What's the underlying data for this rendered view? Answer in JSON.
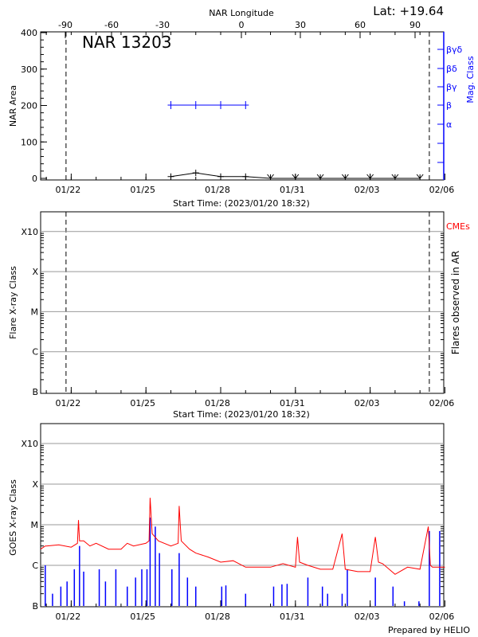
{
  "header": {
    "lat_label": "Lat: +19.64",
    "region_label": "NAR 13203"
  },
  "colors": {
    "area": "#000000",
    "mag_class": "#0000ff",
    "goes_flux": "#ff0000",
    "flares": "#0000ff",
    "cme": "#ff0000",
    "grid": "#999999"
  },
  "chart_data": [
    {
      "type": "line",
      "title": "NAR 13203",
      "xlabel": "Start Time: (2023/01/20 18:32)",
      "ylabel": "NAR Area",
      "y2label": "Mag. Class",
      "top_xlabel": "NAR Longitude",
      "xlim": [
        "2023-01-20 18:32",
        "2023-02-06 00:00"
      ],
      "ylim": [
        0,
        400
      ],
      "x_ticks": [
        "01/22",
        "01/25",
        "01/28",
        "01/31",
        "02/03",
        "02/06"
      ],
      "y_ticks": [
        "0",
        "100",
        "200",
        "300",
        "400"
      ],
      "top_ticks": [
        "-90",
        "-60",
        "-30",
        "0",
        "30",
        "60",
        "90"
      ],
      "y2_ticks": [
        "α",
        "β",
        "βγ",
        "βδ",
        "βγδ"
      ],
      "limb_lines": [
        "2023-01-21 19:00",
        "2023-02-05 09:00"
      ],
      "series": [
        {
          "name": "NAR Area",
          "x": [
            "2023-01-26",
            "2023-01-27",
            "2023-01-28",
            "2023-01-29",
            "2023-01-30",
            "2023-01-31",
            "2023-02-01",
            "2023-02-02",
            "2023-02-03",
            "2023-02-04",
            "2023-02-05"
          ],
          "values": [
            5,
            15,
            5,
            5,
            0,
            0,
            0,
            0,
            0,
            0,
            0
          ]
        },
        {
          "name": "Mag. Class",
          "x": [
            "2023-01-26",
            "2023-01-27",
            "2023-01-28",
            "2023-01-29"
          ],
          "values": [
            "β",
            "β",
            "β",
            "β"
          ]
        }
      ]
    },
    {
      "type": "scatter",
      "xlabel": "Start Time: (2023/01/20 18:32)",
      "ylabel": "Flare X-ray Class",
      "y2label": "Flares observed in AR",
      "legend": "CMEs",
      "xlim": [
        "2023-01-20 18:32",
        "2023-02-06 00:00"
      ],
      "x_ticks": [
        "01/22",
        "01/25",
        "01/28",
        "01/31",
        "02/03",
        "02/06"
      ],
      "y_ticks": [
        "B",
        "C",
        "M",
        "X",
        "X10"
      ],
      "grid": true,
      "limb_lines": [
        "2023-01-21 19:00",
        "2023-02-05 09:00"
      ],
      "series": []
    },
    {
      "type": "line",
      "ylabel": "GOES X-ray Class",
      "footer": "Prepared by HELIO",
      "xlim": [
        "2023-01-20 18:32",
        "2023-02-06 00:00"
      ],
      "x_ticks": [
        "01/22",
        "01/25",
        "01/28",
        "01/31",
        "02/03",
        "02/06"
      ],
      "y_ticks": [
        "B",
        "C",
        "M",
        "X",
        "X10"
      ],
      "ylim_flux": [
        1e-07,
        0.01
      ],
      "grid": true,
      "series": [
        {
          "name": "GOES flux",
          "x": [
            "2023-01-20 18:32",
            "2023-01-20 23:00",
            "2023-01-21 00:00",
            "2023-01-21 12:00",
            "2023-01-22 00:00",
            "2023-01-22 06:00",
            "2023-01-22 07:00",
            "2023-01-22 08:00",
            "2023-01-22 12:00",
            "2023-01-22 18:00",
            "2023-01-23 00:00",
            "2023-01-23 12:00",
            "2023-01-24 00:00",
            "2023-01-24 06:00",
            "2023-01-24 12:00",
            "2023-01-25 00:00",
            "2023-01-25 03:00",
            "2023-01-25 04:00",
            "2023-01-25 06:00",
            "2023-01-25 12:00",
            "2023-01-26 00:00",
            "2023-01-26 07:00",
            "2023-01-26 08:00",
            "2023-01-26 10:00",
            "2023-01-26 18:00",
            "2023-01-27 00:00",
            "2023-01-27 12:00",
            "2023-01-28 00:00",
            "2023-01-28 12:00",
            "2023-01-29 00:00",
            "2023-01-29 12:00",
            "2023-01-30 00:00",
            "2023-01-30 12:00",
            "2023-01-31 00:00",
            "2023-01-31 02:00",
            "2023-01-31 04:00",
            "2023-01-31 12:00",
            "2023-02-01 00:00",
            "2023-02-01 12:00",
            "2023-02-01 21:00",
            "2023-02-02 00:00",
            "2023-02-02 12:00",
            "2023-02-03 00:00",
            "2023-02-03 05:00",
            "2023-02-03 08:00",
            "2023-02-03 12:00",
            "2023-02-04 00:00",
            "2023-02-04 12:00",
            "2023-02-05 00:00",
            "2023-02-05 08:00",
            "2023-02-05 10:00",
            "2023-02-05 12:00",
            "2023-02-06 00:00"
          ],
          "values": [
            2.5e-06,
            3e-06,
            3e-06,
            3.2e-06,
            2.8e-06,
            3.5e-06,
            1.3e-05,
            4e-06,
            4e-06,
            3e-06,
            3.5e-06,
            2.5e-06,
            2.5e-06,
            3.5e-06,
            3e-06,
            3.5e-06,
            4e-06,
            4.6e-05,
            6e-06,
            4e-06,
            3e-06,
            3.5e-06,
            2.9e-05,
            4e-06,
            2.5e-06,
            2e-06,
            1.6e-06,
            1.2e-06,
            1.3e-06,
            9e-07,
            9e-07,
            9e-07,
            1.1e-06,
            9e-07,
            5e-06,
            1.2e-06,
            1e-06,
            8e-07,
            8e-07,
            6e-06,
            8e-07,
            7e-07,
            7e-07,
            5e-06,
            1.2e-06,
            1.1e-06,
            6e-07,
            9e-07,
            8e-07,
            9e-06,
            1e-06,
            9e-07,
            9e-07
          ]
        },
        {
          "name": "Flares",
          "x": [
            "2023-01-20 23:00",
            "2023-01-21 06:00",
            "2023-01-21 14:00",
            "2023-01-21 20:00",
            "2023-01-22 03:00",
            "2023-01-22 08:00",
            "2023-01-22 12:00",
            "2023-01-23 03:00",
            "2023-01-23 09:00",
            "2023-01-23 19:00",
            "2023-01-24 06:00",
            "2023-01-24 14:00",
            "2023-01-24 20:00",
            "2023-01-25 01:00",
            "2023-01-25 04:00",
            "2023-01-25 09:00",
            "2023-01-25 13:00",
            "2023-01-26 01:00",
            "2023-01-26 08:00",
            "2023-01-26 16:00",
            "2023-01-27 00:00",
            "2023-01-28 01:00",
            "2023-01-28 05:00",
            "2023-01-29 00:00",
            "2023-01-30 03:00",
            "2023-01-30 11:00",
            "2023-01-30 16:00",
            "2023-01-31 12:00",
            "2023-02-01 02:00",
            "2023-02-01 07:00",
            "2023-02-01 21:00",
            "2023-02-02 02:00",
            "2023-02-03 05:00",
            "2023-02-03 22:00",
            "2023-02-04 09:00",
            "2023-02-04 23:00",
            "2023-02-05 09:00",
            "2023-02-05 19:00"
          ],
          "values": [
            1e-06,
            2e-07,
            3e-07,
            4e-07,
            8e-07,
            3e-06,
            7e-07,
            8e-07,
            4e-07,
            8e-07,
            3e-07,
            5e-07,
            8e-07,
            8e-07,
            1.5e-05,
            9e-06,
            2e-06,
            8e-07,
            2e-06,
            5e-07,
            3e-07,
            3e-07,
            3.2e-07,
            2e-07,
            3e-07,
            3.4e-07,
            3.5e-07,
            5e-07,
            3e-07,
            2e-07,
            2e-07,
            8e-07,
            5e-07,
            3e-07,
            1.3e-07,
            1.3e-07,
            7e-06,
            7e-06
          ]
        }
      ]
    }
  ]
}
